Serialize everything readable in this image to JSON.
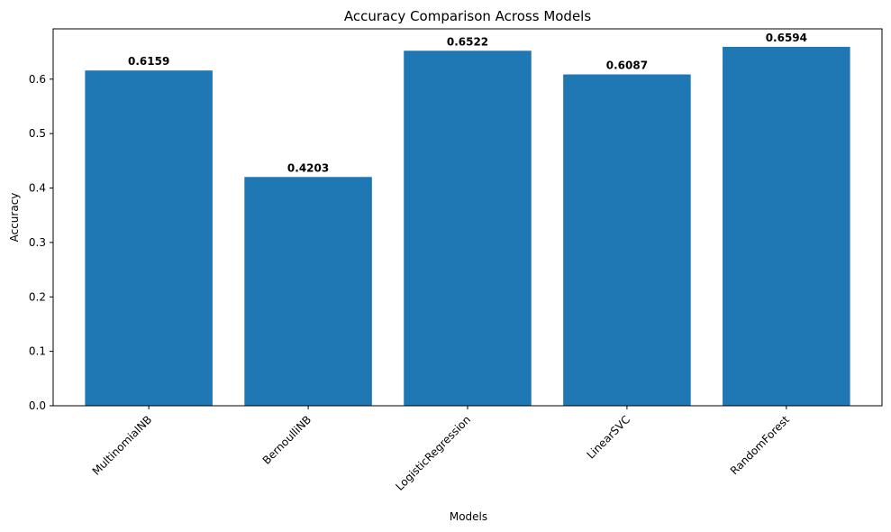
{
  "chart_data": {
    "type": "bar",
    "title": "Accuracy Comparison Across Models",
    "xlabel": "Models",
    "ylabel": "Accuracy",
    "categories": [
      "MultinomialNB",
      "BernoulliNB",
      "LogisticRegression",
      "LinearSVC",
      "RandomForest"
    ],
    "values": [
      0.6159,
      0.4203,
      0.6522,
      0.6087,
      0.6594
    ],
    "data_labels": [
      "0.6159",
      "0.4203",
      "0.6522",
      "0.6087",
      "0.6594"
    ],
    "ylim": [
      0,
      0.6924
    ],
    "yticks": [
      0.0,
      0.1,
      0.2,
      0.3,
      0.4,
      0.5,
      0.6
    ],
    "ytick_labels": [
      "0.0",
      "0.1",
      "0.2",
      "0.3",
      "0.4",
      "0.5",
      "0.6"
    ],
    "bar_color": "#1f77b4",
    "grid": false,
    "legend": "none"
  }
}
